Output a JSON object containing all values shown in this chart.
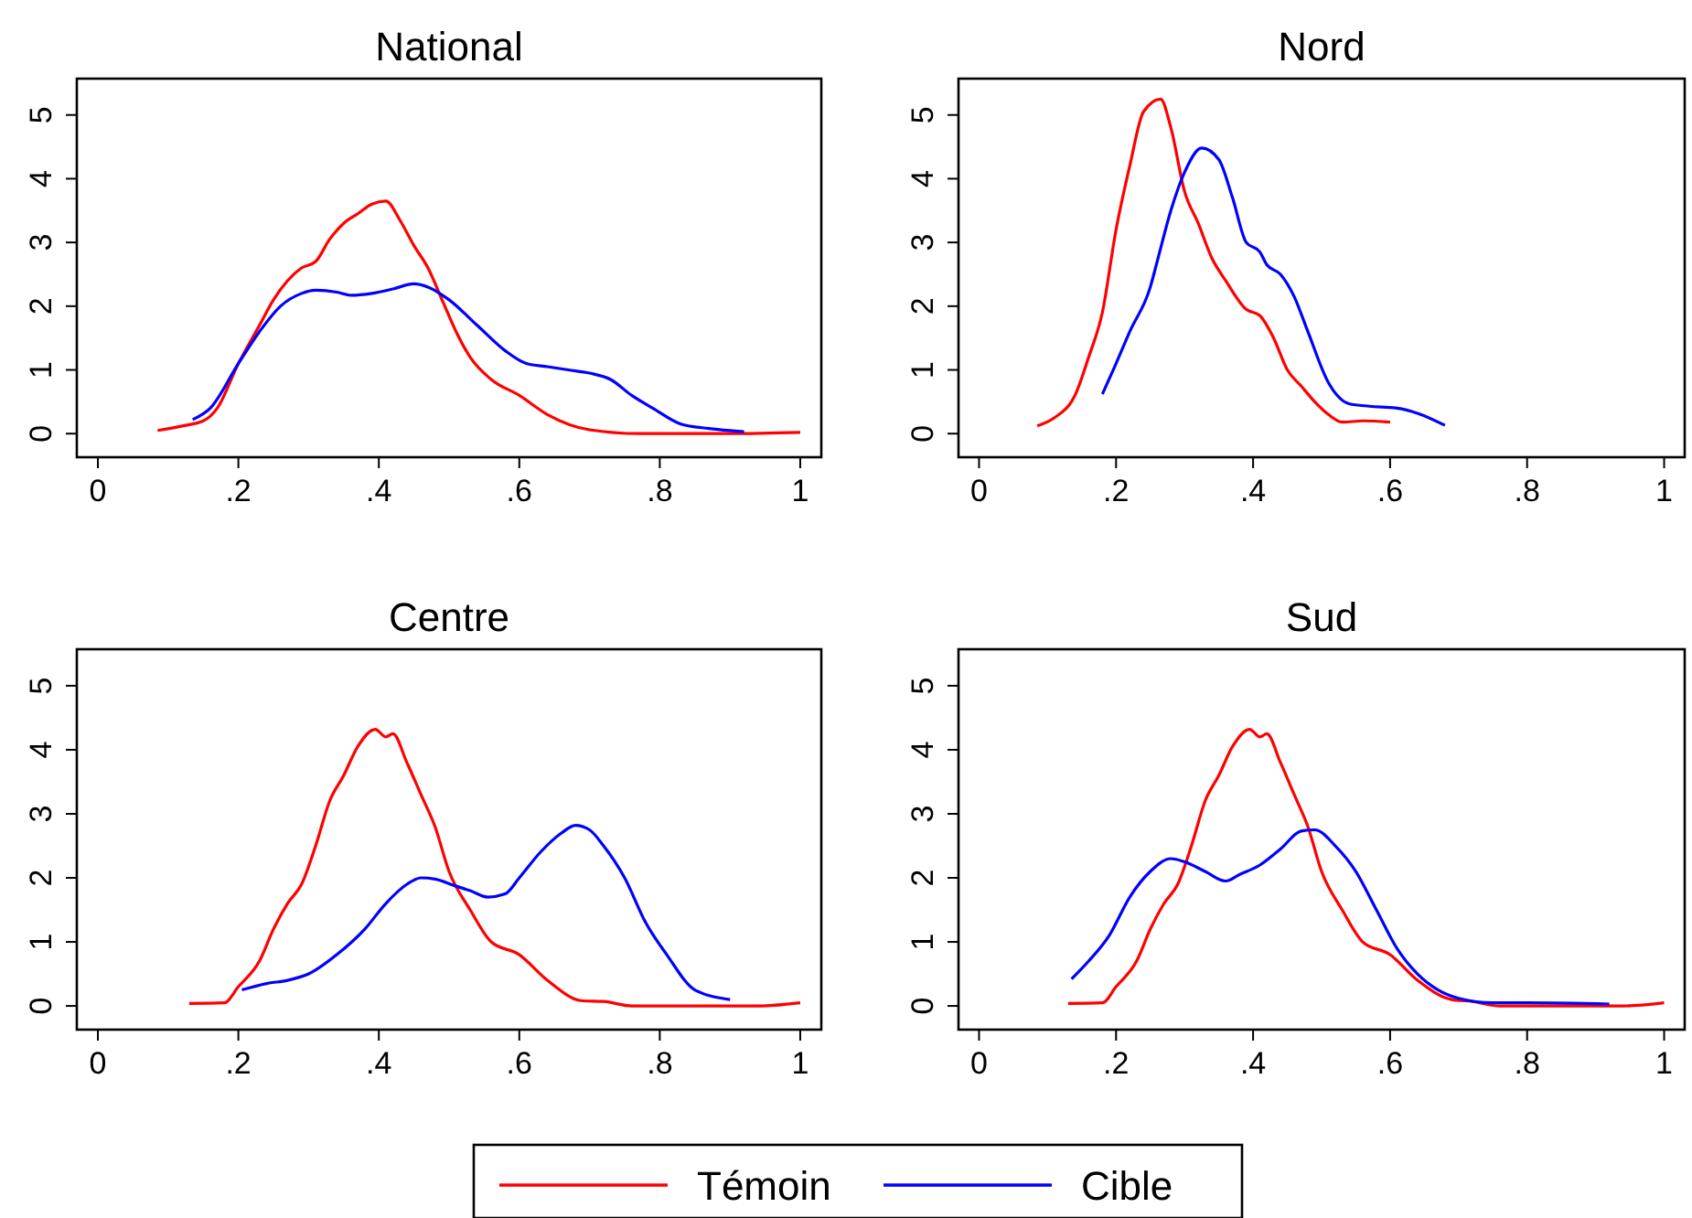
{
  "chart_data": [
    {
      "type": "line",
      "title": "National",
      "xlim": [
        -0.03,
        1.03
      ],
      "ylim": [
        -0.37,
        5.57
      ],
      "xticks": [
        {
          "value": 0,
          "label": "0"
        },
        {
          "value": 0.2,
          "label": ".2"
        },
        {
          "value": 0.4,
          "label": ".4"
        },
        {
          "value": 0.6,
          "label": ".6"
        },
        {
          "value": 0.8,
          "label": ".8"
        },
        {
          "value": 1,
          "label": "1"
        }
      ],
      "yticks": [
        0,
        1,
        2,
        3,
        4,
        5
      ],
      "grid": false,
      "legend": "bottom",
      "series": [
        {
          "name": "Témoin",
          "color": "#ff0000",
          "x": [
            0.085,
            0.12,
            0.15,
            0.17,
            0.2,
            0.23,
            0.25,
            0.27,
            0.29,
            0.31,
            0.33,
            0.35,
            0.37,
            0.39,
            0.41,
            0.43,
            0.45,
            0.47,
            0.49,
            0.51,
            0.53,
            0.56,
            0.6,
            0.64,
            0.7,
            0.77,
            0.9,
            1.0
          ],
          "values": [
            0.05,
            0.12,
            0.2,
            0.4,
            1.1,
            1.7,
            2.1,
            2.4,
            2.6,
            2.7,
            3.05,
            3.3,
            3.45,
            3.6,
            3.65,
            3.35,
            2.95,
            2.6,
            2.1,
            1.6,
            1.2,
            0.85,
            0.6,
            0.3,
            0.06,
            0,
            0,
            0.02
          ]
        },
        {
          "name": "Cible",
          "color": "#0000ff",
          "x": [
            0.135,
            0.16,
            0.2,
            0.23,
            0.26,
            0.29,
            0.31,
            0.34,
            0.36,
            0.39,
            0.42,
            0.45,
            0.47,
            0.5,
            0.54,
            0.58,
            0.61,
            0.64,
            0.67,
            0.7,
            0.73,
            0.76,
            0.79,
            0.83,
            0.87,
            0.92
          ],
          "values": [
            0.22,
            0.4,
            1.1,
            1.6,
            2.0,
            2.2,
            2.25,
            2.22,
            2.17,
            2.2,
            2.27,
            2.35,
            2.3,
            2.1,
            1.7,
            1.3,
            1.1,
            1.05,
            1.0,
            0.95,
            0.85,
            0.6,
            0.4,
            0.15,
            0.08,
            0.03
          ]
        }
      ]
    },
    {
      "type": "line",
      "title": "Nord",
      "xlim": [
        -0.03,
        1.03
      ],
      "ylim": [
        -0.37,
        5.57
      ],
      "xticks": [
        {
          "value": 0,
          "label": "0"
        },
        {
          "value": 0.2,
          "label": ".2"
        },
        {
          "value": 0.4,
          "label": ".4"
        },
        {
          "value": 0.6,
          "label": ".6"
        },
        {
          "value": 0.8,
          "label": ".8"
        },
        {
          "value": 1,
          "label": "1"
        }
      ],
      "yticks": [
        0,
        1,
        2,
        3,
        4,
        5
      ],
      "grid": false,
      "series": [
        {
          "color": "#ff0000",
          "x": [
            0.085,
            0.11,
            0.14,
            0.16,
            0.18,
            0.2,
            0.22,
            0.24,
            0.265,
            0.28,
            0.3,
            0.32,
            0.34,
            0.36,
            0.39,
            0.41,
            0.43,
            0.45,
            0.47,
            0.49,
            0.51,
            0.53,
            0.56,
            0.6
          ],
          "values": [
            0.12,
            0.25,
            0.6,
            1.2,
            1.9,
            3.2,
            4.2,
            5.05,
            5.25,
            4.8,
            3.8,
            3.3,
            2.75,
            2.4,
            1.95,
            1.85,
            1.5,
            1.0,
            0.75,
            0.5,
            0.3,
            0.18,
            0.2,
            0.18
          ]
        },
        {
          "color": "#0000ff",
          "x": [
            0.18,
            0.2,
            0.22,
            0.25,
            0.26,
            0.28,
            0.3,
            0.325,
            0.35,
            0.37,
            0.39,
            0.41,
            0.42,
            0.44,
            0.46,
            0.48,
            0.51,
            0.54,
            0.57,
            0.61,
            0.64,
            0.68
          ],
          "values": [
            0.62,
            1.1,
            1.6,
            2.3,
            2.7,
            3.5,
            4.1,
            4.48,
            4.3,
            3.7,
            3.0,
            2.85,
            2.65,
            2.5,
            2.15,
            1.6,
            0.8,
            0.47,
            0.43,
            0.4,
            0.32,
            0.13
          ]
        }
      ]
    },
    {
      "type": "line",
      "title": "Centre",
      "xlim": [
        -0.03,
        1.03
      ],
      "ylim": [
        -0.37,
        5.57
      ],
      "xticks": [
        {
          "value": 0,
          "label": "0"
        },
        {
          "value": 0.2,
          "label": ".2"
        },
        {
          "value": 0.4,
          "label": ".4"
        },
        {
          "value": 0.6,
          "label": ".6"
        },
        {
          "value": 0.8,
          "label": ".8"
        },
        {
          "value": 1,
          "label": "1"
        }
      ],
      "yticks": [
        0,
        1,
        2,
        3,
        4,
        5
      ],
      "grid": false,
      "series": [
        {
          "color": "#ff0000",
          "x": [
            0.13,
            0.18,
            0.2,
            0.23,
            0.25,
            0.27,
            0.29,
            0.31,
            0.33,
            0.35,
            0.37,
            0.395,
            0.41,
            0.42,
            0.44,
            0.46,
            0.48,
            0.5,
            0.53,
            0.56,
            0.6,
            0.64,
            0.69,
            0.72,
            0.76,
            0.94,
            1.0
          ],
          "values": [
            0.04,
            0.05,
            0.3,
            0.7,
            1.2,
            1.6,
            1.9,
            2.5,
            3.2,
            3.6,
            4.05,
            4.32,
            4.2,
            4.25,
            3.8,
            3.3,
            2.8,
            2.1,
            1.5,
            1.0,
            0.8,
            0.4,
            0.08,
            0.07,
            0,
            0,
            0.05
          ]
        },
        {
          "color": "#0000ff",
          "x": [
            0.205,
            0.24,
            0.27,
            0.3,
            0.34,
            0.38,
            0.41,
            0.44,
            0.46,
            0.48,
            0.51,
            0.53,
            0.555,
            0.58,
            0.6,
            0.63,
            0.66,
            0.68,
            0.7,
            0.72,
            0.75,
            0.78,
            0.81,
            0.85,
            0.9
          ],
          "values": [
            0.25,
            0.35,
            0.4,
            0.5,
            0.8,
            1.2,
            1.6,
            1.9,
            2.0,
            1.98,
            1.87,
            1.8,
            1.7,
            1.75,
            2.0,
            2.4,
            2.7,
            2.82,
            2.75,
            2.5,
            2.0,
            1.3,
            0.8,
            0.25,
            0.1
          ]
        }
      ]
    },
    {
      "type": "line",
      "title": "Sud",
      "xlim": [
        -0.03,
        1.03
      ],
      "ylim": [
        -0.37,
        5.57
      ],
      "xticks": [
        {
          "value": 0,
          "label": "0"
        },
        {
          "value": 0.2,
          "label": ".2"
        },
        {
          "value": 0.4,
          "label": ".4"
        },
        {
          "value": 0.6,
          "label": ".6"
        },
        {
          "value": 0.8,
          "label": ".8"
        },
        {
          "value": 1,
          "label": "1"
        }
      ],
      "yticks": [
        0,
        1,
        2,
        3,
        4,
        5
      ],
      "grid": false,
      "series": [
        {
          "color": "#ff0000",
          "x": [
            0.13,
            0.18,
            0.2,
            0.23,
            0.25,
            0.27,
            0.29,
            0.31,
            0.33,
            0.35,
            0.37,
            0.395,
            0.41,
            0.42,
            0.44,
            0.46,
            0.48,
            0.5,
            0.53,
            0.56,
            0.6,
            0.64,
            0.69,
            0.72,
            0.76,
            0.94,
            1.0
          ],
          "values": [
            0.04,
            0.05,
            0.3,
            0.7,
            1.2,
            1.6,
            1.9,
            2.5,
            3.2,
            3.6,
            4.05,
            4.32,
            4.2,
            4.25,
            3.8,
            3.3,
            2.8,
            2.1,
            1.5,
            1.0,
            0.8,
            0.4,
            0.1,
            0.07,
            0,
            0,
            0.05
          ]
        },
        {
          "color": "#0000ff",
          "x": [
            0.135,
            0.16,
            0.19,
            0.22,
            0.25,
            0.28,
            0.3,
            0.33,
            0.36,
            0.38,
            0.41,
            0.44,
            0.47,
            0.49,
            0.52,
            0.55,
            0.58,
            0.61,
            0.64,
            0.67,
            0.7,
            0.75,
            0.8,
            0.92
          ],
          "values": [
            0.42,
            0.7,
            1.1,
            1.7,
            2.1,
            2.3,
            2.25,
            2.1,
            1.95,
            2.05,
            2.2,
            2.45,
            2.73,
            2.75,
            2.5,
            2.1,
            1.5,
            0.9,
            0.5,
            0.25,
            0.12,
            0.05,
            0.05,
            0.03
          ]
        }
      ]
    }
  ]
}
